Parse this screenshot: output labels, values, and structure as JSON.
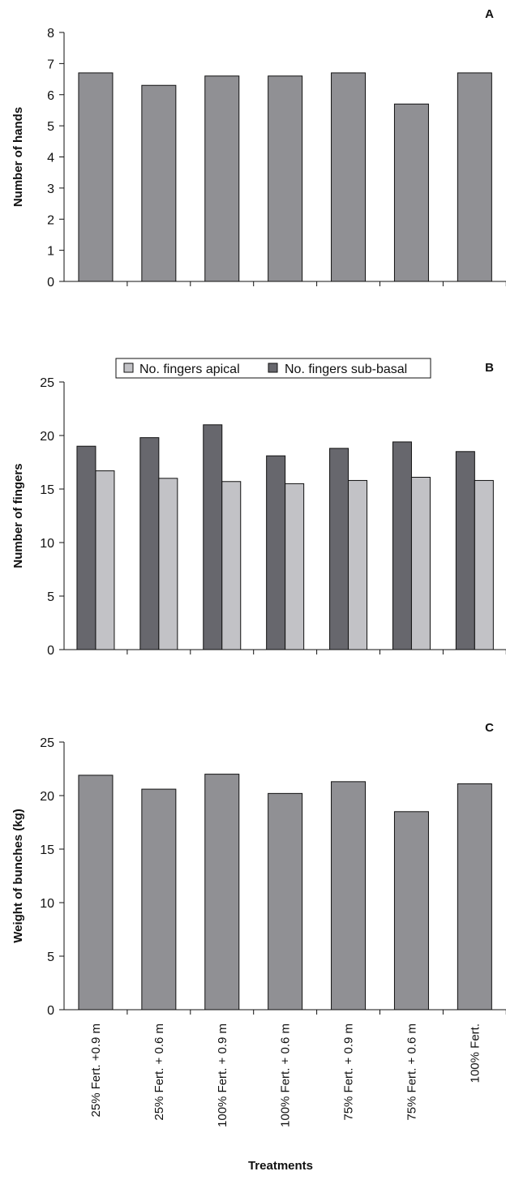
{
  "colors": {
    "single": "#909094",
    "apical": "#c2c2c6",
    "subbasal": "#67676d",
    "axis": "#111111"
  },
  "x_title": "Treatments",
  "chart_data": [
    {
      "panel": "A",
      "type": "bar",
      "categories": [
        "25% Fert. +0.9 m",
        "25% Fert. + 0.6 m",
        "100% Fert. + 0.9 m",
        "100% Fert. + 0.6 m",
        "75% Fert. + 0.9 m",
        "75% Fert. + 0.6 m",
        "100% Fert."
      ],
      "series": [
        {
          "name": "",
          "values": [
            6.7,
            6.3,
            6.6,
            6.6,
            6.7,
            5.7,
            6.7
          ]
        }
      ],
      "ylabel": "Number of hands",
      "ylim": [
        0,
        8
      ],
      "yticks": [
        0,
        1,
        2,
        3,
        4,
        5,
        6,
        7,
        8
      ],
      "legend": "none",
      "grid": false
    },
    {
      "panel": "B",
      "type": "bar",
      "categories": [
        "25% Fert. +0.9 m",
        "25% Fert. + 0.6 m",
        "100% Fert. + 0.9 m",
        "100% Fert. + 0.6 m",
        "75% Fert. + 0.9 m",
        "75% Fert. + 0.6 m",
        "100% Fert."
      ],
      "series": [
        {
          "name": "No. fingers sub-basal",
          "values": [
            19.0,
            19.8,
            21.0,
            18.1,
            18.8,
            19.4,
            18.5
          ]
        },
        {
          "name": "No. fingers apical",
          "values": [
            16.7,
            16.0,
            15.7,
            15.5,
            15.8,
            16.1,
            15.8
          ]
        }
      ],
      "legend_order": [
        "No. fingers apical",
        "No. fingers sub-basal"
      ],
      "ylabel": "Number of fingers",
      "ylim": [
        0,
        25
      ],
      "yticks": [
        0,
        5,
        10,
        15,
        20,
        25
      ],
      "legend": "top",
      "grid": false
    },
    {
      "panel": "C",
      "type": "bar",
      "categories": [
        "25% Fert. +0.9 m",
        "25% Fert. + 0.6 m",
        "100% Fert. + 0.9 m",
        "100% Fert. + 0.6 m",
        "75% Fert. + 0.9 m",
        "75% Fert. + 0.6 m",
        "100% Fert."
      ],
      "series": [
        {
          "name": "",
          "values": [
            21.9,
            20.6,
            22.0,
            20.2,
            21.3,
            18.5,
            21.1
          ]
        }
      ],
      "ylabel": "Weight of bunches (kg)",
      "ylim": [
        0,
        25
      ],
      "yticks": [
        0,
        5,
        10,
        15,
        20,
        25
      ],
      "legend": "none",
      "grid": false
    }
  ]
}
